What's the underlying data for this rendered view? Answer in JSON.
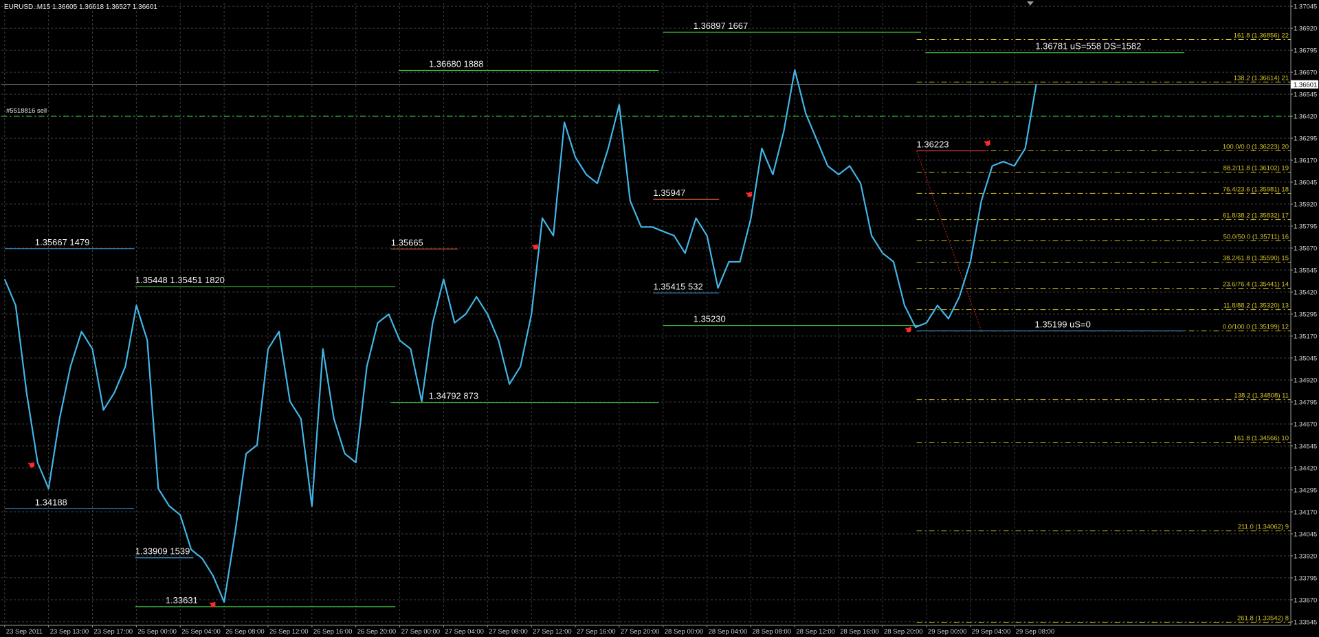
{
  "chart_data": {
    "type": "line",
    "title": "EURUSD..M15  1.36605 1.36618 1.36527 1.36601",
    "categories": [
      "23 Sep 2011",
      null,
      null,
      null,
      "23 Sep 13:00",
      null,
      null,
      null,
      "23 Sep 17:00",
      null,
      null,
      null,
      "26 Sep 00:00",
      null,
      null,
      null,
      "26 Sep 04:00",
      null,
      null,
      null,
      "26 Sep 08:00",
      null,
      null,
      null,
      "26 Sep 12:00",
      null,
      null,
      null,
      "26 Sep 16:00",
      null,
      null,
      null,
      "26 Sep 20:00",
      null,
      null,
      null,
      "27 Sep 00:00",
      null,
      null,
      null,
      "27 Sep 04:00",
      null,
      null,
      null,
      "27 Sep 08:00",
      null,
      null,
      null,
      "27 Sep 12:00",
      null,
      null,
      null,
      "27 Sep 16:00",
      null,
      null,
      null,
      "27 Sep 20:00",
      null,
      null,
      null,
      "28 Sep 00:00",
      null,
      null,
      null,
      "28 Sep 04:00",
      null,
      null,
      null,
      "28 Sep 08:00",
      null,
      null,
      null,
      "28 Sep 12:00",
      null,
      null,
      null,
      "28 Sep 16:00",
      null,
      null,
      null,
      "28 Sep 20:00",
      null,
      null,
      null,
      "29 Sep 00:00",
      null,
      null,
      null,
      "29 Sep 04:00",
      null,
      null,
      null,
      "29 Sep 08:00",
      null,
      null
    ],
    "series": [
      {
        "color": "#41b6e6",
        "values": [
          1.35493,
          1.35344,
          1.34848,
          1.34451,
          1.34302,
          1.34699,
          1.34997,
          1.35195,
          1.35096,
          1.34749,
          1.34848,
          1.34997,
          1.35344,
          1.35145,
          1.34302,
          1.34203,
          1.34153,
          1.33955,
          1.33905,
          1.33806,
          1.33657,
          1.34054,
          1.34501,
          1.3455,
          1.35096,
          1.35195,
          1.34798,
          1.34699,
          1.34203,
          1.35096,
          1.34699,
          1.34501,
          1.34451,
          1.34997,
          1.35245,
          1.35294,
          1.35145,
          1.35096,
          1.34798,
          1.35245,
          1.35493,
          1.35245,
          1.35294,
          1.35393,
          1.35294,
          1.35145,
          1.34897,
          1.34997,
          1.35294,
          1.3584,
          1.35741,
          1.36385,
          1.36187,
          1.36088,
          1.36038,
          1.36237,
          1.36485,
          1.35939,
          1.3579,
          1.3579,
          1.35765,
          1.35741,
          1.35641,
          1.3584,
          1.35741,
          1.35443,
          1.35592,
          1.35592,
          1.3584,
          1.36237,
          1.36088,
          1.36336,
          1.36683,
          1.36435,
          1.36286,
          1.36137,
          1.36088,
          1.36137,
          1.36038,
          1.35741,
          1.35641,
          1.35592,
          1.35344,
          1.3522,
          1.35245,
          1.35344,
          1.35269,
          1.35393,
          1.35592,
          1.35939,
          1.36137,
          1.36162,
          1.36137,
          1.36237,
          1.36601
        ]
      }
    ],
    "xlim": [
      -0.3,
      117.2
    ],
    "ylim": [
      1.33525,
      1.37065
    ],
    "yticks": [
      1.37045,
      {
        "value": 1.3692,
        "label": "1.36920"
      },
      1.36795,
      {
        "value": 1.3667,
        "label": "1.36670"
      },
      1.36545,
      {
        "value": 1.3642,
        "label": "1.36420"
      },
      1.36295,
      {
        "value": 1.3617,
        "label": "1.36170"
      },
      1.36045,
      {
        "value": 1.3592,
        "label": "1.35920"
      },
      1.35795,
      {
        "value": 1.3567,
        "label": "1.35670"
      },
      1.35545,
      {
        "value": 1.3542,
        "label": "1.35420"
      },
      1.35295,
      {
        "value": 1.3517,
        "label": "1.35170"
      },
      1.35045,
      {
        "value": 1.3492,
        "label": "1.34920"
      },
      1.34795,
      {
        "value": 1.3467,
        "label": "1.34670"
      },
      1.34545,
      {
        "value": 1.3442,
        "label": "1.34420"
      },
      1.34295,
      {
        "value": 1.3417,
        "label": "1.34170"
      },
      1.34045,
      {
        "value": 1.3392,
        "label": "1.33920"
      },
      1.33795,
      {
        "value": 1.3367,
        "label": "1.33670"
      },
      1.33545
    ],
    "grid": true,
    "current_price": 1.36601,
    "order": {
      "label": "#5518816 sell",
      "value": 1.3642,
      "color": "#2fbf2f"
    },
    "levels": [
      {
        "label": "1.35667 1479",
        "value": 1.35667,
        "x": [
          0,
          11.8
        ],
        "color": "#3a96d6"
      },
      {
        "label": "1.34188",
        "value": 1.34188,
        "x": [
          0,
          11.8
        ],
        "color": "#3a96d6"
      },
      {
        "label": "1.35448 1.35451 1820",
        "value": 1.35451,
        "x": [
          11.9,
          35.6
        ],
        "color": "#3ec43e"
      },
      {
        "label": "1.33909 1539",
        "value": 1.33909,
        "x": [
          11.9,
          17.2
        ],
        "color": "#3a96d6"
      },
      {
        "label": "1.33631",
        "value": 1.33631,
        "x": [
          11.9,
          35.6
        ],
        "color": "#3ec43e"
      },
      {
        "label": "1.35665",
        "value": 1.35665,
        "x": [
          35.2,
          41.3
        ],
        "color": "#e0603a"
      },
      {
        "label": "1.36680 1888",
        "value": 1.3668,
        "x": [
          35.9,
          59.6
        ],
        "color": "#3ec43e"
      },
      {
        "label": "1.34792 873",
        "value": 1.34792,
        "x": [
          35.2,
          59.6
        ],
        "color": "#3ec43e"
      },
      {
        "label": "1.35947",
        "value": 1.35947,
        "x": [
          59.1,
          65.1
        ],
        "color": "#e0603a"
      },
      {
        "label": "1.35415 532",
        "value": 1.35415,
        "x": [
          59.1,
          65.1
        ],
        "color": "#3a96d6"
      },
      {
        "label": "1.36897 1667",
        "value": 1.36897,
        "x": [
          60,
          83.5
        ],
        "color": "#3ec43e"
      },
      {
        "label": "1.35230",
        "value": 1.3523,
        "x": [
          60,
          83.5
        ],
        "color": "#3ec43e"
      },
      {
        "label": "1.36223",
        "value": 1.36223,
        "x": [
          83.1,
          89.4
        ],
        "color": "#e03a3a"
      },
      {
        "label": "1.36781 uS=558 DS=1582",
        "value": 1.36781,
        "x": [
          83.9,
          107.5
        ],
        "color": "#3ec43e"
      },
      {
        "label": "1.35199 uS=0",
        "value": 1.35199,
        "x": [
          83.1,
          107.5
        ],
        "color": "#3a96d6"
      }
    ],
    "fib_color": "#d8c62a",
    "fib_start": 83.1,
    "fibs": [
      {
        "label": "161.8 (1.36856) 22",
        "value": 1.36856
      },
      {
        "label": "138.2 (1.36614) 21",
        "value": 1.36614
      },
      {
        "label": "100.0/0.0 (1.36223) 20",
        "value": 1.36223
      },
      {
        "label": "88.2/11.8 (1.36102) 19",
        "value": 1.36102
      },
      {
        "label": "76.4/23.6 (1.35981) 18",
        "value": 1.35981
      },
      {
        "label": "61.8/38.2 (1.35832) 17",
        "value": 1.35832
      },
      {
        "label": "50.0/50.0 (1.35711) 16",
        "value": 1.35711
      },
      {
        "label": "38.2/61.8 (1.35590) 15",
        "value": 1.3559
      },
      {
        "label": "23.6/76.4 (1.35441) 14",
        "value": 1.35441
      },
      {
        "label": "11.8/88.2 (1.35320) 13",
        "value": 1.3532
      },
      {
        "label": "0.0/100.0 (1.35199) 12",
        "value": 1.35199
      },
      {
        "label": "138.2 (1.34808) 11",
        "value": 1.34808
      },
      {
        "label": "161.8 (1.34566) 10",
        "value": 1.34566
      },
      {
        "label": "211.0 (1.34062)  9",
        "value": 1.34062
      },
      {
        "label": "261.8 (1.33542)  8",
        "value": 1.33542
      }
    ],
    "signal_color": "#ff2a2a",
    "signals": [
      {
        "x": 2.5,
        "value": 1.34436
      },
      {
        "x": 19,
        "value": 1.33642
      },
      {
        "x": 48.4,
        "value": 1.35676
      },
      {
        "x": 67.9,
        "value": 1.35974
      },
      {
        "x": 82.4,
        "value": 1.35205
      },
      {
        "x": 89.6,
        "value": 1.36266
      }
    ]
  }
}
